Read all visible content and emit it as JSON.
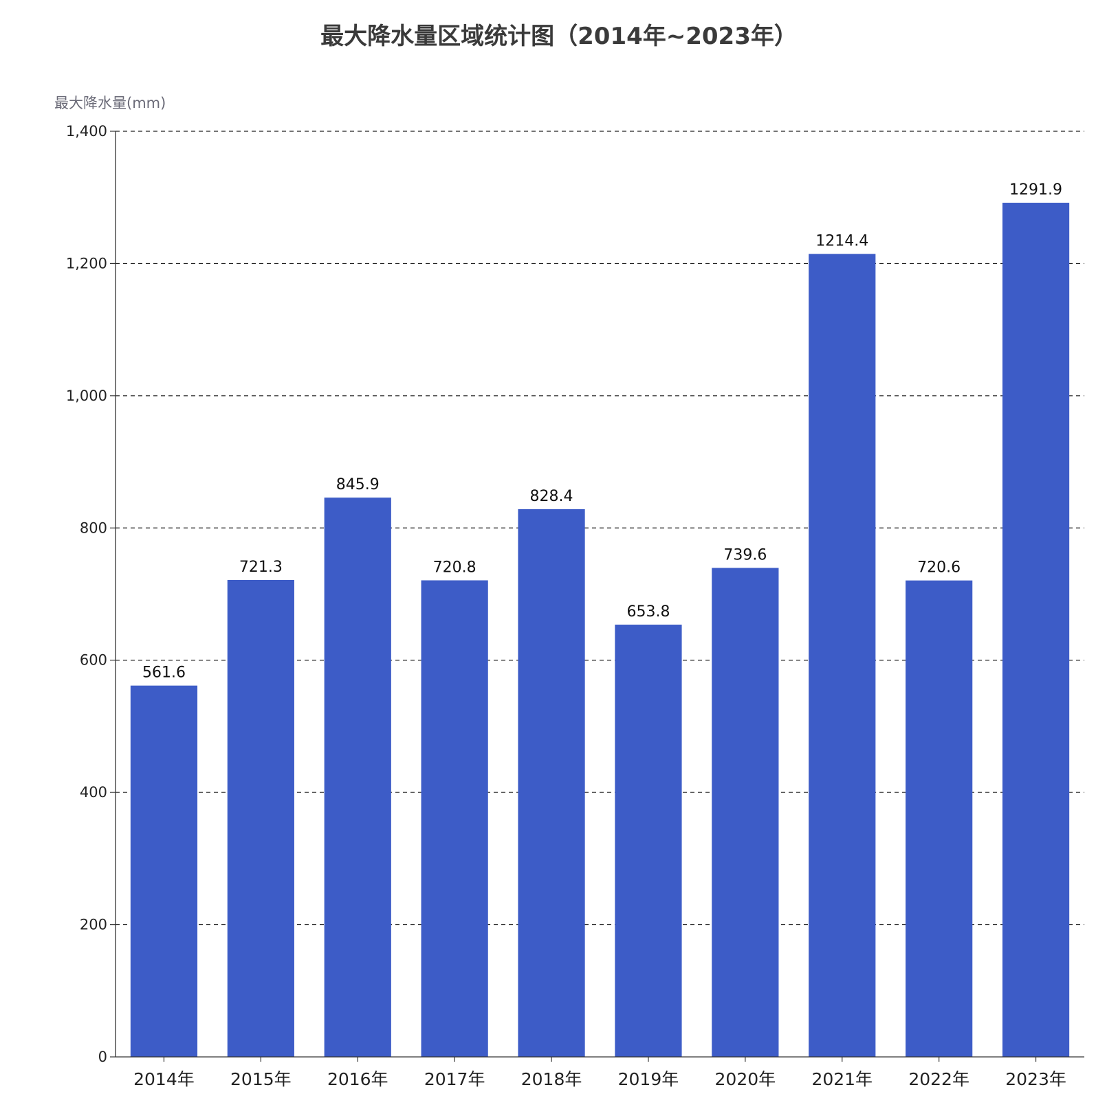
{
  "chart_data": {
    "type": "bar",
    "title": "最大降水量区域统计图（2014年~2023年）",
    "xlabel": "",
    "ylabel": "最大降水量(mm)",
    "ylim": [
      0,
      1400
    ],
    "yticks": [
      0,
      200,
      400,
      600,
      800,
      1000,
      1200,
      1400
    ],
    "ytick_labels": [
      "0",
      "200",
      "400",
      "600",
      "800",
      "1,000",
      "1,200",
      "1,400"
    ],
    "grid": true,
    "categories": [
      "2014年",
      "2015年",
      "2016年",
      "2017年",
      "2018年",
      "2019年",
      "2020年",
      "2021年",
      "2022年",
      "2023年"
    ],
    "values": [
      561.6,
      721.3,
      845.9,
      720.8,
      828.4,
      653.8,
      739.6,
      1214.4,
      720.6,
      1291.9
    ],
    "value_labels": [
      "561.6",
      "721.3",
      "845.9",
      "720.8",
      "828.4",
      "653.8",
      "739.6",
      "1214.4",
      "720.6",
      "1291.9"
    ],
    "bar_color": "#3d5cc7"
  }
}
